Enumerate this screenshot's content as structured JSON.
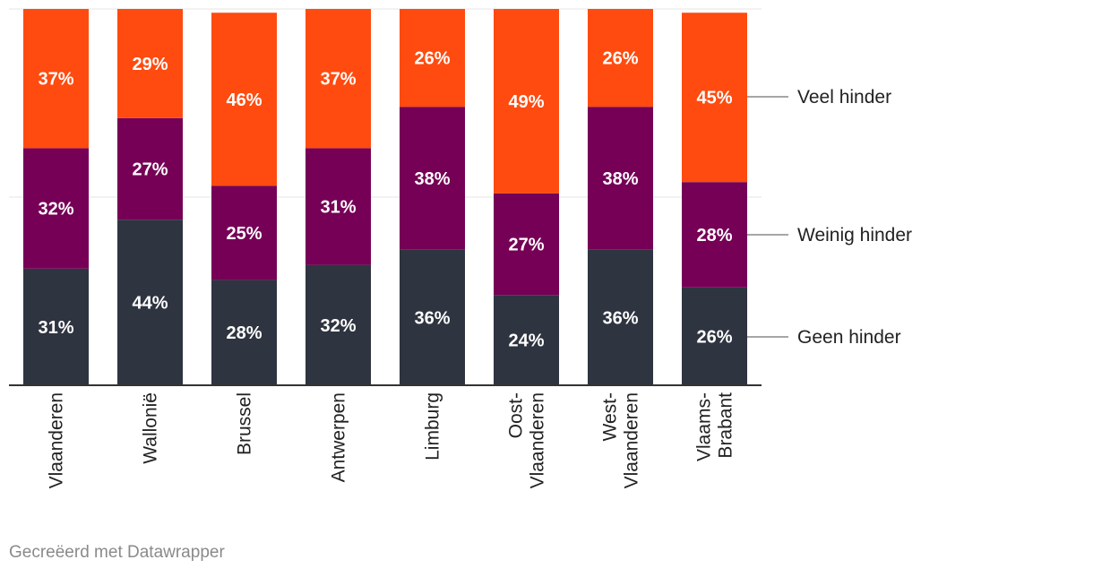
{
  "chart_data": {
    "type": "bar",
    "stacked": true,
    "categories": [
      "Vlaanderen",
      "Wallonië",
      "Brussel",
      "Antwerpen",
      "Limburg",
      "Oost-\nVlaanderen",
      "West-\nVlaanderen",
      "Vlaams-\nBrabant"
    ],
    "series": [
      {
        "name": "Geen hinder",
        "color": "#2e3440",
        "values": [
          31,
          44,
          28,
          32,
          36,
          24,
          36,
          26
        ]
      },
      {
        "name": "Weinig hinder",
        "color": "#750056",
        "values": [
          32,
          27,
          25,
          31,
          38,
          27,
          38,
          28
        ]
      },
      {
        "name": "Veel hinder",
        "color": "#ff4b0f",
        "values": [
          37,
          29,
          46,
          37,
          26,
          49,
          26,
          45
        ]
      }
    ],
    "value_suffix": "%",
    "ylim": [
      0,
      100
    ],
    "grid": true,
    "legend": "right, labels next to last bar"
  },
  "footer": {
    "credit": "Gecreëerd met Datawrapper"
  }
}
